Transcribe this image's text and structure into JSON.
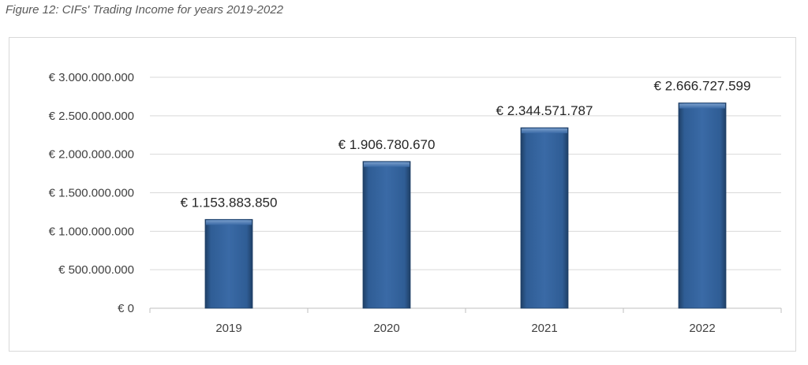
{
  "figure": {
    "title": "Figure 12: CIFs' Trading Income for years 2019-2022"
  },
  "chart_data": {
    "type": "bar",
    "title": "",
    "xlabel": "",
    "ylabel": "",
    "categories": [
      "2019",
      "2020",
      "2021",
      "2022"
    ],
    "values": [
      1153883850,
      1906780670,
      2344571787,
      2666727599
    ],
    "data_labels": [
      "€ 1.153.883.850",
      "€ 1.906.780.670",
      "€ 2.344.571.787",
      "€ 2.666.727.599"
    ],
    "ylim": [
      0,
      3000000000
    ],
    "yticks": [
      0,
      500000000,
      1000000000,
      1500000000,
      2000000000,
      2500000000,
      3000000000
    ],
    "ytick_labels": [
      "€ 0",
      "€ 500.000.000",
      "€ 1.000.000.000",
      "€ 1.500.000.000",
      "€ 2.000.000.000",
      "€ 2.500.000.000",
      "€ 3.000.000.000"
    ],
    "grid": true,
    "legend": "none",
    "bar_color": "#2f5d95"
  }
}
